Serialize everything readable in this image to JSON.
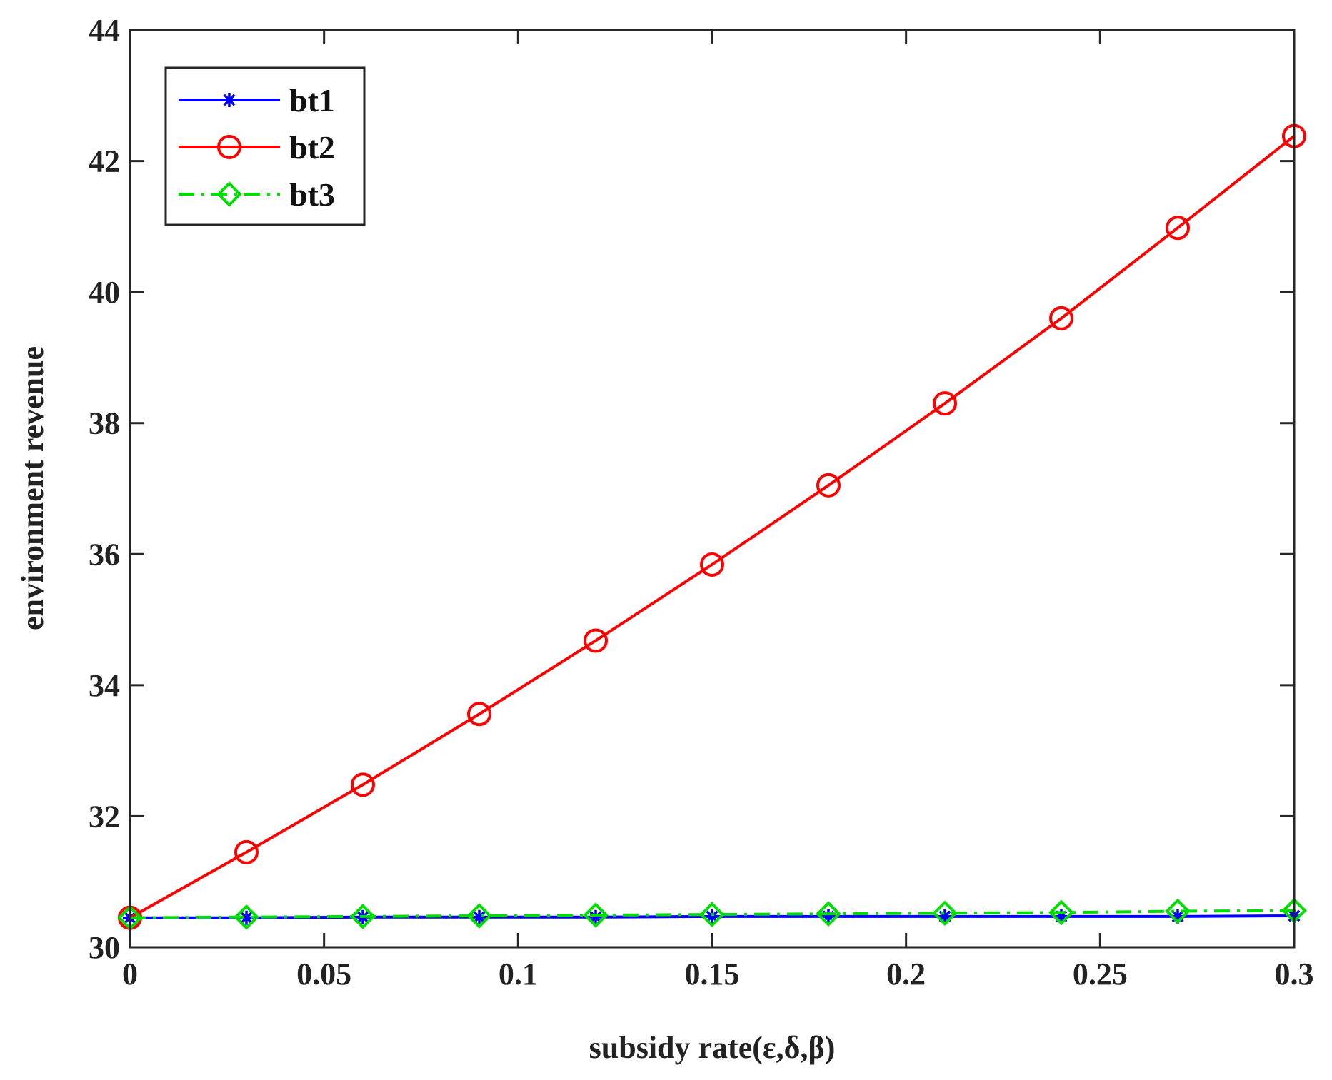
{
  "chart_data": {
    "type": "line",
    "title": "",
    "xlabel": "subsidy rate(ε,δ,β)",
    "ylabel": "environment revenue",
    "xlim": [
      0,
      0.3
    ],
    "ylim": [
      30,
      44
    ],
    "xticks": [
      0,
      0.05,
      0.1,
      0.15,
      0.2,
      0.25,
      0.3
    ],
    "xtick_labels": [
      "0",
      "0.05",
      "0.1",
      "0.15",
      "0.2",
      "0.25",
      "0.3"
    ],
    "yticks": [
      30,
      32,
      34,
      36,
      38,
      40,
      42,
      44
    ],
    "ytick_labels": [
      "30",
      "32",
      "34",
      "36",
      "38",
      "40",
      "42",
      "44"
    ],
    "grid": false,
    "legend_position": "top-left",
    "x": [
      0,
      0.03,
      0.06,
      0.09,
      0.12,
      0.15,
      0.18,
      0.21,
      0.24,
      0.27,
      0.3
    ],
    "series": [
      {
        "name": "bt1",
        "color": "#0000ff",
        "line_style": "solid",
        "marker": "asterisk",
        "values": [
          30.45,
          30.45,
          30.46,
          30.46,
          30.46,
          30.47,
          30.47,
          30.47,
          30.47,
          30.47,
          30.48
        ]
      },
      {
        "name": "bt2",
        "color": "#ff0000",
        "line_style": "solid",
        "marker": "circle",
        "values": [
          30.45,
          31.45,
          32.48,
          33.56,
          34.68,
          35.84,
          37.05,
          38.3,
          39.6,
          40.98,
          42.38
        ]
      },
      {
        "name": "bt3",
        "color": "#00dd00",
        "line_style": "dashdot",
        "marker": "diamond",
        "values": [
          30.45,
          30.46,
          30.47,
          30.48,
          30.49,
          30.5,
          30.51,
          30.52,
          30.53,
          30.55,
          30.56
        ]
      }
    ]
  }
}
